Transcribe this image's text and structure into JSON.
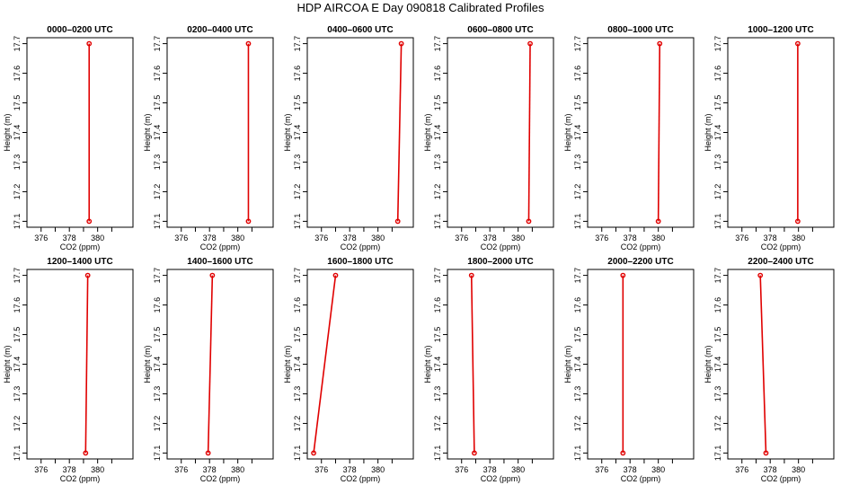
{
  "title": "HDP AIRCOA E  Day 090818  Calibrated Profiles",
  "colors": {
    "series": "#e00000",
    "axis": "#000000",
    "background": "#ffffff"
  },
  "chart_data": {
    "type": "line",
    "xlabel": "CO2 (ppm)",
    "ylabel": "Height (m)",
    "xlim": [
      375,
      382.5
    ],
    "ylim": [
      17.08,
      17.72
    ],
    "xticks": [
      376,
      378,
      380
    ],
    "xminorticks": [
      377,
      379,
      381
    ],
    "yticks": [
      17.1,
      17.2,
      17.3,
      17.4,
      17.5,
      17.6,
      17.7
    ],
    "ytick_labels": [
      "17.1",
      "17.2",
      "17.3",
      "17.4",
      "17.5",
      "17.6",
      "17.7"
    ],
    "grid": false,
    "legend": "none",
    "panels": [
      {
        "title": "0000–0200 UTC",
        "points": [
          {
            "x": 379.4,
            "y": 17.1
          },
          {
            "x": 379.4,
            "y": 17.7
          }
        ]
      },
      {
        "title": "0200–0400 UTC",
        "points": [
          {
            "x": 380.75,
            "y": 17.1
          },
          {
            "x": 380.75,
            "y": 17.7
          }
        ]
      },
      {
        "title": "0400–0600 UTC",
        "points": [
          {
            "x": 381.4,
            "y": 17.1
          },
          {
            "x": 381.65,
            "y": 17.7
          }
        ]
      },
      {
        "title": "0600–0800 UTC",
        "points": [
          {
            "x": 380.75,
            "y": 17.1
          },
          {
            "x": 380.85,
            "y": 17.7
          }
        ]
      },
      {
        "title": "0800–1000 UTC",
        "points": [
          {
            "x": 380.0,
            "y": 17.1
          },
          {
            "x": 380.1,
            "y": 17.7
          }
        ]
      },
      {
        "title": "1000–1200 UTC",
        "points": [
          {
            "x": 379.95,
            "y": 17.1
          },
          {
            "x": 379.95,
            "y": 17.7
          }
        ]
      },
      {
        "title": "1200–1400 UTC",
        "points": [
          {
            "x": 379.15,
            "y": 17.1
          },
          {
            "x": 379.3,
            "y": 17.7
          }
        ]
      },
      {
        "title": "1400–1600 UTC",
        "points": [
          {
            "x": 377.9,
            "y": 17.1
          },
          {
            "x": 378.2,
            "y": 17.7
          }
        ]
      },
      {
        "title": "1600–1800 UTC",
        "points": [
          {
            "x": 375.45,
            "y": 17.1
          },
          {
            "x": 377.0,
            "y": 17.7
          }
        ]
      },
      {
        "title": "1800–2000 UTC",
        "points": [
          {
            "x": 376.9,
            "y": 17.1
          },
          {
            "x": 376.7,
            "y": 17.7
          }
        ]
      },
      {
        "title": "2000–2200 UTC",
        "points": [
          {
            "x": 377.5,
            "y": 17.1
          },
          {
            "x": 377.5,
            "y": 17.7
          }
        ]
      },
      {
        "title": "2200–2400 UTC",
        "points": [
          {
            "x": 377.7,
            "y": 17.1
          },
          {
            "x": 377.3,
            "y": 17.7
          }
        ]
      }
    ]
  }
}
